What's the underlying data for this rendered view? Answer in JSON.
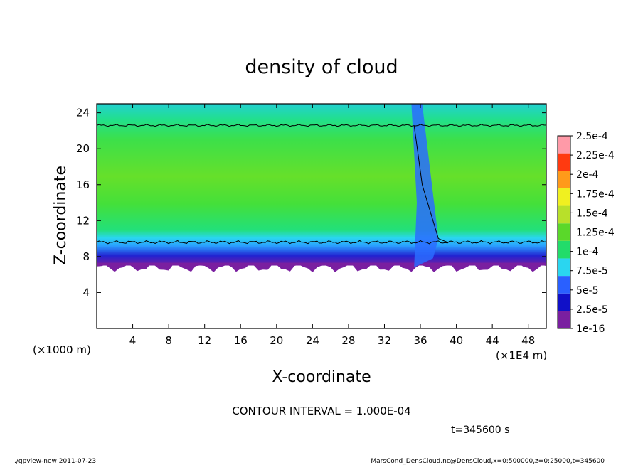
{
  "chart_data": {
    "type": "heatmap",
    "title": "density of cloud",
    "xlabel": "X-coordinate",
    "ylabel": "Z-coordinate",
    "x_unit_label": "(×1E4 m)",
    "y_unit_label": "(×1000 m)",
    "xlim": [
      0,
      50
    ],
    "ylim": [
      0,
      25
    ],
    "x_ticks": [
      "4",
      "8",
      "12",
      "16",
      "20",
      "24",
      "28",
      "32",
      "36",
      "40",
      "44",
      "48"
    ],
    "y_ticks": [
      "4",
      "8",
      "12",
      "16",
      "20",
      "24"
    ],
    "colorbar": {
      "labels": [
        "1e-16",
        "2.5e-5",
        "5e-5",
        "7.5e-5",
        "1e-4",
        "1.25e-4",
        "1.5e-4",
        "1.75e-4",
        "2e-4",
        "2.25e-4",
        "2.5e-4"
      ],
      "colors": [
        "#7a1fa0",
        "#1010c8",
        "#2a60ff",
        "#2ad6f0",
        "#22dc6a",
        "#5ad82a",
        "#b8e02a",
        "#f0f020",
        "#ff9a1a",
        "#ff3a10",
        "#ff9aa8"
      ]
    },
    "field": {
      "cloud_base_z": 7,
      "cloud_top_z": 25,
      "low_contour_z": 9.6,
      "high_contour_z": 22.6,
      "disturbance_x": [
        35,
        38
      ]
    }
  },
  "contour_interval": "CONTOUR INTERVAL = 1.000E-04",
  "time_label": "t=345600 s",
  "footer": {
    "left": "./gpview-new   2011-07-23",
    "right": "MarsCond_DensCloud.nc@DensCloud,x=0:500000,z=0:25000,t=345600"
  }
}
